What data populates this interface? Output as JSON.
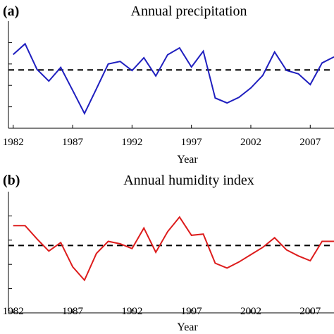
{
  "chart_data": [
    {
      "type": "line",
      "panel_letter": "(a)",
      "title": "Annual precipitation",
      "xlabel": "Year",
      "ylabel": "",
      "x_ticks": [
        1982,
        1987,
        1992,
        1997,
        2002,
        2007
      ],
      "xlim": [
        1981.6,
        2009
      ],
      "ylim": [
        0,
        5
      ],
      "y_ticks": [
        1,
        2,
        3,
        4
      ],
      "y_tick_labels_visible": false,
      "mean_line": 2.72,
      "line_color": "#1f1fbf",
      "mean_line_color": "#000000",
      "grid": false,
      "series": [
        {
          "x": [
            1982,
            1983,
            1984,
            1985,
            1986,
            1987,
            1988,
            1989,
            1990,
            1991,
            1992,
            1993,
            1994,
            1995,
            1996,
            1997,
            1998,
            1999,
            2000,
            2001,
            2002,
            2003,
            2004,
            2005,
            2006,
            2007,
            2008,
            2009
          ],
          "y": [
            3.44,
            3.94,
            2.75,
            2.2,
            2.84,
            1.77,
            0.69,
            1.84,
            3.0,
            3.12,
            2.69,
            3.29,
            2.44,
            3.43,
            3.75,
            2.86,
            3.6,
            1.41,
            1.18,
            1.44,
            1.88,
            2.46,
            3.56,
            2.7,
            2.54,
            2.04,
            3.05,
            3.33
          ]
        }
      ]
    },
    {
      "type": "line",
      "panel_letter": "(b)",
      "title": "Annual humidity index",
      "xlabel": "Year",
      "ylabel": "",
      "x_ticks": [
        1982,
        1987,
        1992,
        1997,
        2002,
        2007
      ],
      "xlim": [
        1981.6,
        2009
      ],
      "ylim": [
        0,
        5
      ],
      "y_ticks": [
        1,
        2,
        3,
        4
      ],
      "y_tick_labels_visible": false,
      "mean_line": 2.78,
      "line_color": "#dd1c1c",
      "mean_line_color": "#000000",
      "grid": false,
      "series": [
        {
          "x": [
            1982,
            1983,
            1984,
            1985,
            1986,
            1987,
            1988,
            1989,
            1990,
            1991,
            1992,
            1993,
            1994,
            1995,
            1996,
            1997,
            1998,
            1999,
            2000,
            2001,
            2002,
            2003,
            2004,
            2005,
            2006,
            2007,
            2008,
            2009
          ],
          "y": [
            3.6,
            3.6,
            3.05,
            2.55,
            2.9,
            1.9,
            1.35,
            2.45,
            2.95,
            2.85,
            2.65,
            3.5,
            2.5,
            3.35,
            3.95,
            3.2,
            3.25,
            2.05,
            1.85,
            2.1,
            2.4,
            2.7,
            3.1,
            2.6,
            2.35,
            2.15,
            2.95,
            2.95
          ]
        }
      ]
    }
  ]
}
